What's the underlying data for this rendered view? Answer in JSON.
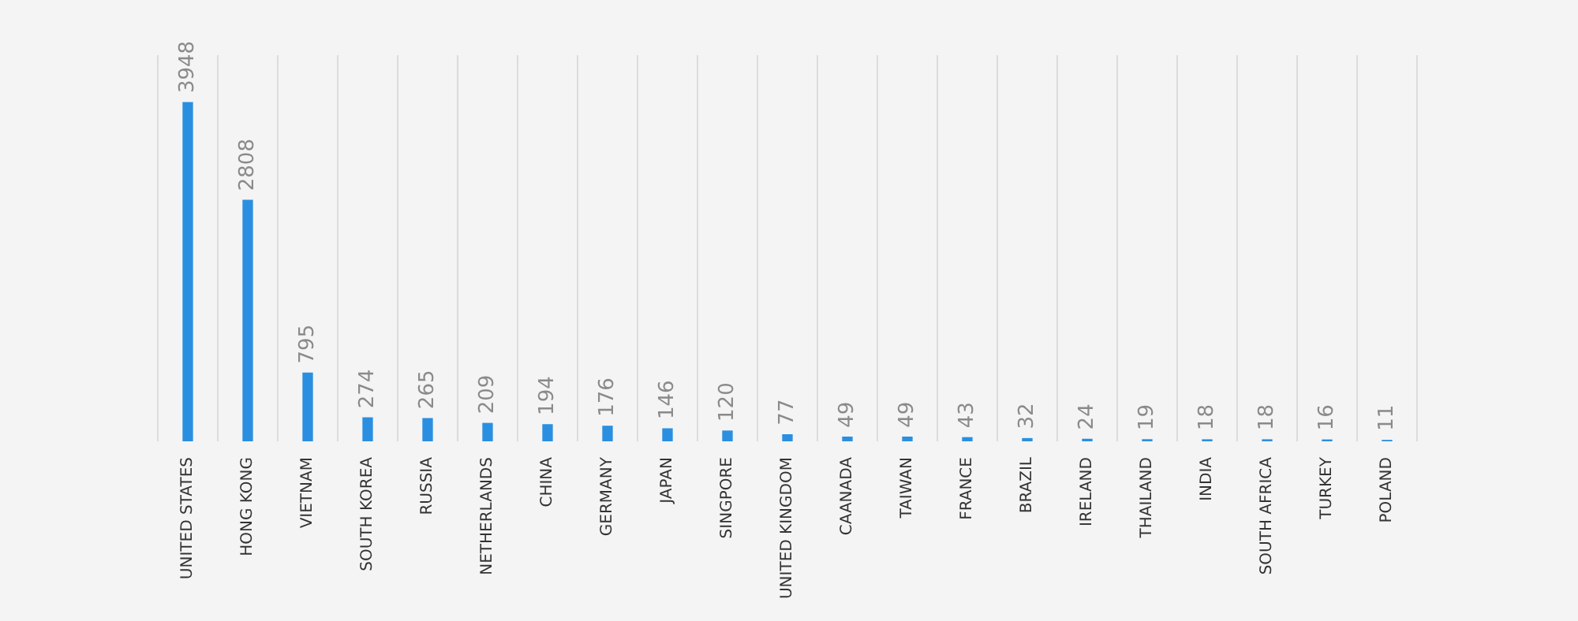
{
  "chart_data": {
    "type": "bar",
    "categories": [
      "UNITED STATES",
      "HONG KONG",
      "VIETNAM",
      "SOUTH KOREA",
      "RUSSIA",
      "NETHERLANDS",
      "CHINA",
      "GERMANY",
      "JAPAN",
      "SINGPORE",
      "UNITED KINGDOM",
      "CAANADA",
      "TAIWAN",
      "FRANCE",
      "BRAZIL",
      "IRELAND",
      "THAILAND",
      "INDIA",
      "SOUTH AFRICA",
      "TURKEY",
      "POLAND"
    ],
    "values": [
      3948,
      2808,
      795,
      274,
      265,
      209,
      194,
      176,
      146,
      120,
      77,
      49,
      49,
      43,
      32,
      24,
      19,
      18,
      18,
      16,
      11
    ],
    "color": "#2a8fe0",
    "data_labels": true,
    "grid": "x",
    "legend": false
  }
}
